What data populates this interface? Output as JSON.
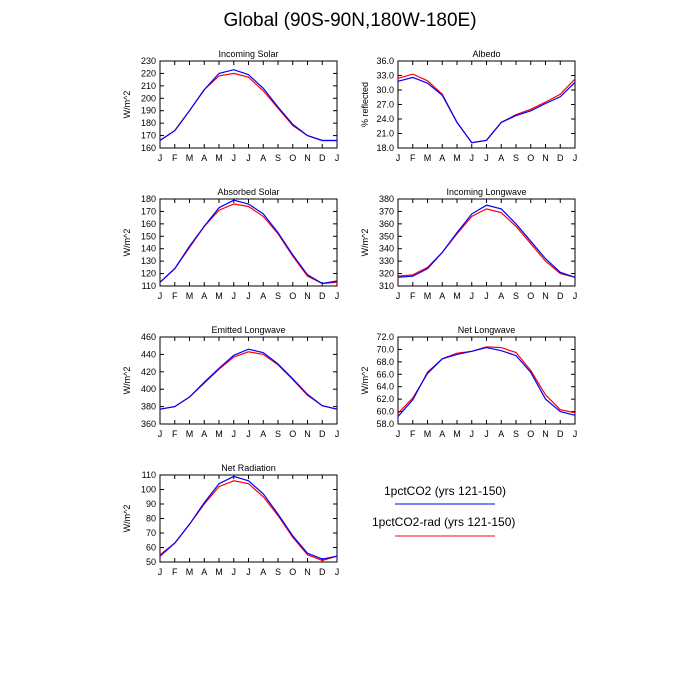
{
  "title": "Global (90S-90N,180W-180E)",
  "series_colors": {
    "1pctCO2 (yrs 121-150)": "#0000ff",
    "1pctCO2-rad (yrs 121-150)": "#ff0000"
  },
  "legend": [
    {
      "label": "1pctCO2 (yrs 121-150)",
      "color": "#0000ff"
    },
    {
      "label": "1pctCO2-rad (yrs 121-150)",
      "color": "#ff0000"
    }
  ],
  "chart_data": [
    {
      "type": "line",
      "title": "Incoming Solar",
      "ylabel": "W/m^2",
      "categories": [
        "J",
        "F",
        "M",
        "A",
        "M",
        "J",
        "J",
        "A",
        "S",
        "O",
        "N",
        "D",
        "J"
      ],
      "ylim": [
        160,
        230
      ],
      "yticks": [
        160,
        170,
        180,
        190,
        200,
        210,
        220,
        230
      ],
      "ytick_labels": [
        "160",
        "170",
        "180",
        "190",
        "200",
        "210",
        "220",
        "230"
      ],
      "series": [
        {
          "values": [
            166,
            174,
            190,
            207,
            220,
            223,
            219,
            208,
            193,
            179,
            170,
            166,
            166
          ],
          "color": "#0000ff"
        },
        {
          "values": [
            166,
            174,
            190,
            207,
            218,
            220,
            217,
            206,
            192,
            178,
            170,
            166,
            166
          ],
          "color": "#ff0000"
        }
      ]
    },
    {
      "type": "line",
      "title": "Albedo",
      "ylabel": "% reflected",
      "categories": [
        "J",
        "F",
        "M",
        "A",
        "M",
        "J",
        "J",
        "A",
        "S",
        "O",
        "N",
        "D",
        "J"
      ],
      "ylim": [
        18,
        36
      ],
      "yticks": [
        18,
        21,
        24,
        27,
        30,
        33,
        36
      ],
      "ytick_labels": [
        "18.0",
        "21.0",
        "24.0",
        "27.0",
        "30.0",
        "33.0",
        "36.0"
      ],
      "series": [
        {
          "values": [
            31.8,
            32.6,
            31.4,
            28.9,
            23.3,
            19.1,
            19.6,
            23.3,
            24.7,
            25.7,
            27.2,
            28.6,
            31.6
          ],
          "color": "#0000ff"
        },
        {
          "values": [
            32.4,
            33.3,
            31.9,
            29.1,
            23.3,
            19.1,
            19.6,
            23.3,
            24.9,
            26.0,
            27.5,
            29.1,
            32.3
          ],
          "color": "#ff0000"
        }
      ]
    },
    {
      "type": "line",
      "title": "Absorbed Solar",
      "ylabel": "W/m^2",
      "categories": [
        "J",
        "F",
        "M",
        "A",
        "M",
        "J",
        "J",
        "A",
        "S",
        "O",
        "N",
        "D",
        "J"
      ],
      "ylim": [
        110,
        180
      ],
      "yticks": [
        110,
        120,
        130,
        140,
        150,
        160,
        170,
        180
      ],
      "ytick_labels": [
        "110",
        "120",
        "130",
        "140",
        "150",
        "160",
        "170",
        "180"
      ],
      "series": [
        {
          "values": [
            113,
            124,
            142,
            158,
            173,
            179,
            176,
            168,
            153,
            135,
            119,
            112,
            114
          ],
          "color": "#0000ff"
        },
        {
          "values": [
            113,
            124,
            141,
            158,
            171,
            176,
            174,
            166,
            152,
            134,
            118,
            112,
            113
          ],
          "color": "#ff0000"
        }
      ]
    },
    {
      "type": "line",
      "title": "Incoming Longwave",
      "ylabel": "W/m^2",
      "categories": [
        "J",
        "F",
        "M",
        "A",
        "M",
        "J",
        "J",
        "A",
        "S",
        "O",
        "N",
        "D",
        "J"
      ],
      "ylim": [
        310,
        380
      ],
      "yticks": [
        310,
        320,
        330,
        340,
        350,
        360,
        370,
        380
      ],
      "ytick_labels": [
        "310",
        "320",
        "330",
        "340",
        "350",
        "360",
        "370",
        "380"
      ],
      "series": [
        {
          "values": [
            317,
            318,
            324,
            337,
            353,
            368,
            375,
            372,
            360,
            346,
            332,
            321,
            317
          ],
          "color": "#0000ff"
        },
        {
          "values": [
            318,
            319,
            325,
            337,
            352,
            366,
            372,
            369,
            358,
            344,
            330,
            320,
            317
          ],
          "color": "#ff0000"
        }
      ]
    },
    {
      "type": "line",
      "title": "Emitted Longwave",
      "ylabel": "W/m^2",
      "categories": [
        "J",
        "F",
        "M",
        "A",
        "M",
        "J",
        "J",
        "A",
        "S",
        "O",
        "N",
        "D",
        "J"
      ],
      "ylim": [
        360,
        460
      ],
      "yticks": [
        360,
        380,
        400,
        420,
        440,
        460
      ],
      "ytick_labels": [
        "360",
        "380",
        "400",
        "420",
        "440",
        "460"
      ],
      "series": [
        {
          "values": [
            377,
            380,
            391,
            408,
            424,
            439,
            446,
            442,
            429,
            412,
            394,
            381,
            377
          ],
          "color": "#0000ff"
        },
        {
          "values": [
            377,
            380,
            391,
            407,
            423,
            437,
            443,
            440,
            428,
            411,
            393,
            381,
            377
          ],
          "color": "#ff0000"
        }
      ]
    },
    {
      "type": "line",
      "title": "Net Longwave",
      "ylabel": "W/m^2",
      "categories": [
        "J",
        "F",
        "M",
        "A",
        "M",
        "J",
        "J",
        "A",
        "S",
        "O",
        "N",
        "D",
        "J"
      ],
      "ylim": [
        58,
        72
      ],
      "yticks": [
        58,
        60,
        62,
        64,
        66,
        68,
        70,
        72
      ],
      "ytick_labels": [
        "58.0",
        "60.0",
        "62.0",
        "64.0",
        "66.0",
        "68.0",
        "70.0",
        "72.0"
      ],
      "series": [
        {
          "values": [
            59.2,
            61.9,
            66.3,
            68.5,
            69.2,
            69.7,
            70.3,
            69.8,
            69.0,
            66.3,
            62.0,
            60.0,
            59.4
          ],
          "color": "#0000ff"
        },
        {
          "values": [
            59.7,
            62.2,
            66.1,
            68.5,
            69.4,
            69.7,
            70.4,
            70.3,
            69.5,
            66.6,
            62.7,
            60.3,
            59.8
          ],
          "color": "#ff0000"
        }
      ]
    },
    {
      "type": "line",
      "title": "Net Radiation",
      "ylabel": "W/m^2",
      "categories": [
        "J",
        "F",
        "M",
        "A",
        "M",
        "J",
        "J",
        "A",
        "S",
        "O",
        "N",
        "D",
        "J"
      ],
      "ylim": [
        50,
        110
      ],
      "yticks": [
        50,
        60,
        70,
        80,
        90,
        100,
        110
      ],
      "ytick_labels": [
        "50",
        "60",
        "70",
        "80",
        "90",
        "100",
        "110"
      ],
      "series": [
        {
          "values": [
            54,
            63,
            76,
            91,
            104,
            109,
            106,
            97,
            83,
            68,
            56,
            52,
            54
          ],
          "color": "#0000ff"
        },
        {
          "values": [
            55,
            63,
            76,
            90,
            102,
            106,
            104,
            95,
            82,
            67,
            55,
            51,
            54
          ],
          "color": "#ff0000"
        }
      ]
    }
  ]
}
